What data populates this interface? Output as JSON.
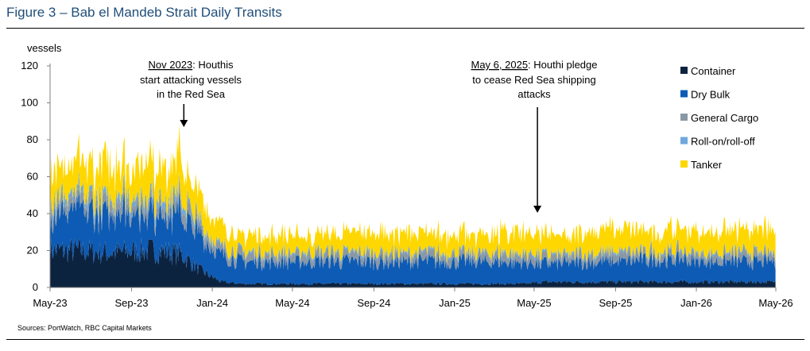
{
  "figure": {
    "title": "Figure 3 – Bab el Mandeb Strait Daily Transits",
    "source": "Sources: PortWatch, RBC Capital Markets"
  },
  "chart_data": {
    "type": "area",
    "stacked": true,
    "title": "Figure 3 – Bab el Mandeb Strait Daily Transits",
    "ylabel": "vessels",
    "xlabel": "",
    "ylim": [
      0,
      120
    ],
    "yticks": [
      0,
      20,
      40,
      60,
      80,
      100,
      120
    ],
    "xlim": [
      "2023-05-01",
      "2026-05-01"
    ],
    "xtick_labels": [
      "May-23",
      "Sep-23",
      "Jan-24",
      "May-24",
      "Sep-24",
      "Jan-25",
      "May-25",
      "Sep-25",
      "Jan-26",
      "May-26"
    ],
    "grid": false,
    "legend_position": "right",
    "x": [
      "2023-05",
      "2023-06",
      "2023-07",
      "2023-08",
      "2023-09",
      "2023-10",
      "2023-11",
      "2023-12",
      "2024-01",
      "2024-02",
      "2024-03",
      "2024-04",
      "2024-05",
      "2024-06",
      "2024-07",
      "2024-08",
      "2024-09",
      "2024-10",
      "2024-11",
      "2024-12",
      "2025-01",
      "2025-02",
      "2025-03",
      "2025-04",
      "2025-05",
      "2025-06",
      "2025-07",
      "2025-08",
      "2025-09",
      "2025-10",
      "2025-11",
      "2025-12",
      "2026-01",
      "2026-02",
      "2026-03",
      "2026-04",
      "2026-05"
    ],
    "series": [
      {
        "name": "Container",
        "color": "#0c2340",
        "values": [
          20,
          20,
          19,
          19,
          20,
          20,
          18,
          9,
          3,
          2,
          2,
          2,
          2,
          2,
          2,
          2,
          2,
          2,
          2,
          2,
          2,
          2,
          2,
          2,
          3,
          3,
          3,
          3,
          3,
          3,
          3,
          3,
          3,
          3,
          3,
          3,
          3
        ]
      },
      {
        "name": "Dry Bulk",
        "color": "#0d5bb5",
        "values": [
          20,
          21,
          21,
          22,
          21,
          21,
          22,
          18,
          14,
          12,
          12,
          12,
          12,
          12,
          12,
          12,
          12,
          12,
          12,
          12,
          12,
          12,
          12,
          11,
          10,
          10,
          11,
          11,
          11,
          12,
          12,
          12,
          11,
          11,
          11,
          11,
          11
        ]
      },
      {
        "name": "General Cargo",
        "color": "#8a98a5",
        "values": [
          6,
          6,
          6,
          6,
          6,
          6,
          6,
          5,
          4,
          4,
          4,
          4,
          4,
          4,
          4,
          4,
          4,
          4,
          4,
          4,
          4,
          4,
          4,
          4,
          4,
          4,
          4,
          4,
          4,
          4,
          4,
          4,
          4,
          4,
          4,
          4,
          4
        ]
      },
      {
        "name": "Roll-on/roll-off",
        "color": "#6fa8dc",
        "values": [
          3,
          3,
          3,
          3,
          3,
          3,
          3,
          2,
          1,
          1,
          1,
          1,
          1,
          1,
          1,
          1,
          1,
          1,
          1,
          1,
          1,
          1,
          1,
          1,
          1,
          1,
          1,
          1,
          1,
          1,
          1,
          1,
          1,
          1,
          1,
          1,
          1
        ]
      },
      {
        "name": "Tanker",
        "color": "#ffd700",
        "values": [
          16,
          17,
          18,
          17,
          17,
          18,
          19,
          15,
          10,
          9,
          9,
          9,
          10,
          10,
          10,
          10,
          11,
          11,
          10,
          10,
          10,
          11,
          11,
          11,
          10,
          10,
          11,
          12,
          12,
          11,
          11,
          11,
          11,
          11,
          12,
          12,
          12
        ]
      }
    ],
    "annotations": [
      {
        "x": "2023-11-19",
        "line1": "Nov 2023",
        "line1_rest": ": Houthis",
        "line2": "start attacking vessels",
        "line3": "in the Red Sea"
      },
      {
        "x": "2025-05-06",
        "line1": "May 6, 2025",
        "line1_rest": ": Houthi pledge",
        "line2": "to cease Red Sea shipping",
        "line3": "attacks"
      }
    ]
  }
}
